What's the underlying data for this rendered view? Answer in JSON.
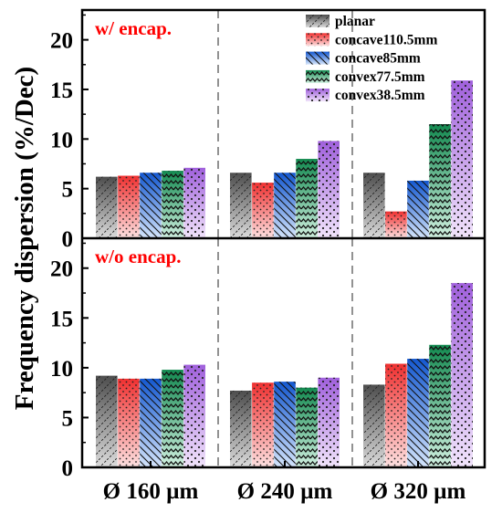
{
  "chart_data": {
    "type": "bar",
    "ylabel": "Frequency dispersion (%/Dec)",
    "categories": [
      "Ø 160 µm",
      "Ø 240 µm",
      "Ø 320 µm"
    ],
    "grid": false,
    "legend_position": "top-right",
    "series_styles": [
      {
        "color": "#8c8c8c",
        "pattern": "dashed-diagonal"
      },
      {
        "color": "#f05a5a",
        "pattern": "dots"
      },
      {
        "color": "#2f6fd4",
        "pattern": "diagonal-lines"
      },
      {
        "color": "#2f9f6a",
        "pattern": "zigzag"
      },
      {
        "color": "#b27be0",
        "pattern": "dots"
      }
    ],
    "series_names": [
      "planar",
      "concave110.5mm",
      "concave85mm",
      "convex77.5mm",
      "convex38.5mm"
    ],
    "panels": [
      {
        "label": "w/ encap.",
        "ylim": [
          0,
          23
        ],
        "yticks": [
          0,
          5,
          10,
          15,
          20
        ],
        "series": [
          {
            "name": "planar",
            "values": [
              6.2,
              6.6,
              6.6
            ]
          },
          {
            "name": "concave110.5mm",
            "values": [
              6.3,
              5.6,
              2.7
            ]
          },
          {
            "name": "concave85mm",
            "values": [
              6.6,
              6.6,
              5.8
            ]
          },
          {
            "name": "convex77.5mm",
            "values": [
              6.8,
              8.0,
              11.5
            ]
          },
          {
            "name": "convex38.5mm",
            "values": [
              7.1,
              9.8,
              15.9
            ]
          }
        ]
      },
      {
        "label": "w/o encap.",
        "ylim": [
          0,
          23
        ],
        "yticks": [
          0,
          5,
          10,
          15,
          20
        ],
        "series": [
          {
            "name": "planar",
            "values": [
              9.2,
              7.7,
              8.3
            ]
          },
          {
            "name": "concave110.5mm",
            "values": [
              8.9,
              8.5,
              10.4
            ]
          },
          {
            "name": "concave85mm",
            "values": [
              8.9,
              8.6,
              10.9
            ]
          },
          {
            "name": "convex77.5mm",
            "values": [
              9.8,
              8.0,
              12.3
            ]
          },
          {
            "name": "convex38.5mm",
            "values": [
              10.3,
              9.0,
              18.5
            ]
          }
        ]
      }
    ]
  }
}
